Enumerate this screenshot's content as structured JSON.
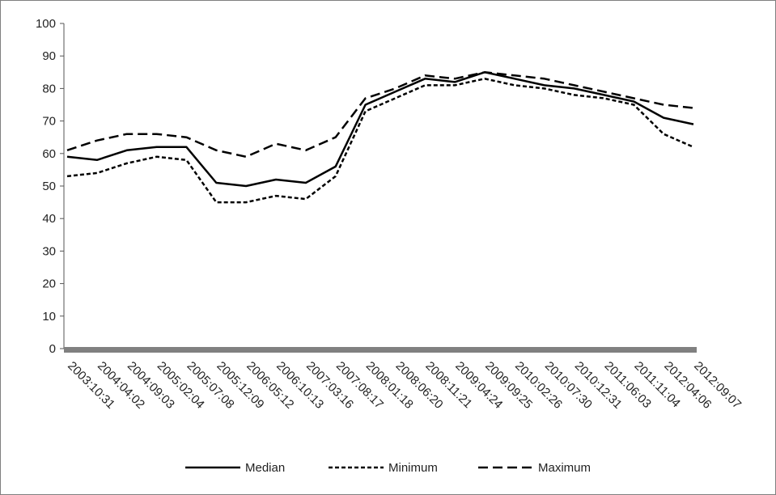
{
  "chart_data": {
    "type": "line",
    "title": "",
    "xlabel": "",
    "ylabel": "",
    "ylim": [
      0,
      100
    ],
    "yticks": [
      0,
      10,
      20,
      30,
      40,
      50,
      60,
      70,
      80,
      90,
      100
    ],
    "grid": false,
    "legend_position": "bottom",
    "x_tick_labels": [
      "2003:10:31",
      "2004:04:02",
      "2004:09:03",
      "2005:02:04",
      "2005:07:08",
      "2005:12:09",
      "2006:05:12",
      "2006:10:13",
      "2007:03:16",
      "2007:08:17",
      "2008:01:18",
      "2008:06:20",
      "2008:11:21",
      "2009:04:24",
      "2009:09:25",
      "2010:02:26",
      "2010:07:30",
      "2010:12:31",
      "2011:06:03",
      "2011:11:04",
      "2012:04:06",
      "2012:09:07"
    ],
    "x": [
      "2003:10:31",
      "2004:04:02",
      "2004:09:03",
      "2005:02:04",
      "2005:07:08",
      "2005:12:09",
      "2006:05:12",
      "2006:10:13",
      "2007:03:16",
      "2007:08:17",
      "2008:01:18",
      "2008:06:20",
      "2008:11:21",
      "2009:04:24",
      "2009:09:25",
      "2010:02:26",
      "2010:07:30",
      "2010:12:31",
      "2011:06:03",
      "2011:11:04",
      "2012:04:06",
      "2012:09:07"
    ],
    "series": [
      {
        "name": "Median",
        "dash": "solid",
        "values": [
          59,
          58,
          61,
          62,
          62,
          51,
          50,
          52,
          51,
          56,
          75,
          79,
          83,
          82,
          85,
          83,
          81,
          80,
          78,
          76,
          71,
          69
        ]
      },
      {
        "name": "Minimum",
        "dash": "short",
        "values": [
          53,
          54,
          57,
          59,
          58,
          45,
          45,
          47,
          46,
          53,
          73,
          77,
          81,
          81,
          83,
          81,
          80,
          78,
          77,
          75,
          66,
          62
        ]
      },
      {
        "name": "Maximum",
        "dash": "long",
        "values": [
          61,
          64,
          66,
          66,
          65,
          61,
          59,
          63,
          61,
          65,
          77,
          80,
          84,
          83,
          85,
          84,
          83,
          81,
          79,
          77,
          75,
          74
        ]
      }
    ]
  }
}
